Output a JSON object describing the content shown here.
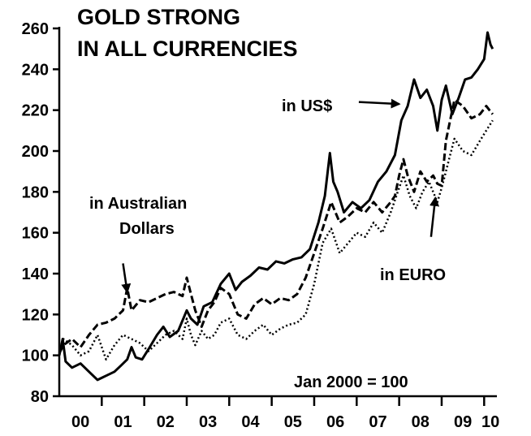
{
  "chart_data": {
    "type": "line",
    "title_lines": [
      "GOLD STRONG",
      "IN ALL CURRENCIES"
    ],
    "note": "Jan 2000 = 100",
    "xlabel": "",
    "ylabel": "",
    "xlim": [
      2000,
      2010.3
    ],
    "ylim": [
      80,
      260
    ],
    "y_ticks": [
      80,
      100,
      120,
      140,
      160,
      180,
      200,
      220,
      240,
      260
    ],
    "x_ticks": [
      {
        "label": "00",
        "value": 2000.5
      },
      {
        "label": "01",
        "value": 2001.5
      },
      {
        "label": "02",
        "value": 2002.5
      },
      {
        "label": "03",
        "value": 2003.5
      },
      {
        "label": "04",
        "value": 2004.5
      },
      {
        "label": "05",
        "value": 2005.5
      },
      {
        "label": "06",
        "value": 2006.5
      },
      {
        "label": "07",
        "value": 2007.5
      },
      {
        "label": "08",
        "value": 2008.5
      },
      {
        "label": "09",
        "value": 2009.5
      },
      {
        "label": "10",
        "value": 2010.15
      }
    ],
    "grid": false,
    "legend": "none (series labelled by annotations)",
    "series": [
      {
        "name": "in US$",
        "style": "solid",
        "x": [
          2000.0,
          2000.08,
          2000.15,
          2000.3,
          2000.5,
          2000.7,
          2000.9,
          2001.1,
          2001.3,
          2001.45,
          2001.6,
          2001.7,
          2001.8,
          2001.95,
          2002.1,
          2002.3,
          2002.45,
          2002.6,
          2002.8,
          2003.0,
          2003.1,
          2003.25,
          2003.4,
          2003.6,
          2003.8,
          2004.0,
          2004.15,
          2004.3,
          2004.5,
          2004.7,
          2004.9,
          2005.1,
          2005.3,
          2005.5,
          2005.7,
          2005.9,
          2006.1,
          2006.25,
          2006.37,
          2006.45,
          2006.55,
          2006.7,
          2006.9,
          2007.1,
          2007.3,
          2007.5,
          2007.7,
          2007.9,
          2008.05,
          2008.2,
          2008.35,
          2008.5,
          2008.65,
          2008.8,
          2008.9,
          2009.0,
          2009.1,
          2009.25,
          2009.4,
          2009.55,
          2009.7,
          2009.85,
          2010.0,
          2010.08,
          2010.15,
          2010.2
        ],
        "values": [
          100,
          108,
          97,
          94,
          96,
          92,
          88,
          90,
          92,
          95,
          98,
          104,
          99,
          98,
          103,
          110,
          114,
          109,
          112,
          122,
          118,
          115,
          124,
          126,
          135,
          140,
          132,
          136,
          139,
          143,
          142,
          146,
          145,
          147,
          148,
          152,
          165,
          178,
          199,
          185,
          180,
          170,
          175,
          172,
          176,
          185,
          190,
          198,
          215,
          222,
          235,
          226,
          230,
          222,
          210,
          225,
          232,
          218,
          226,
          235,
          236,
          240,
          245,
          258,
          252,
          250
        ]
      },
      {
        "name": "in Australian Dollars",
        "style": "dashed",
        "x": [
          2000.0,
          2000.1,
          2000.3,
          2000.5,
          2000.7,
          2000.9,
          2001.1,
          2001.3,
          2001.5,
          2001.6,
          2001.7,
          2001.9,
          2002.1,
          2002.3,
          2002.5,
          2002.7,
          2002.9,
          2003.0,
          2003.1,
          2003.2,
          2003.35,
          2003.5,
          2003.65,
          2003.8,
          2004.0,
          2004.2,
          2004.4,
          2004.6,
          2004.8,
          2005.0,
          2005.2,
          2005.4,
          2005.6,
          2005.8,
          2006.0,
          2006.2,
          2006.4,
          2006.6,
          2006.8,
          2007.0,
          2007.2,
          2007.4,
          2007.6,
          2007.8,
          2007.9,
          2008.0,
          2008.1,
          2008.2,
          2008.35,
          2008.5,
          2008.65,
          2008.8,
          2008.9,
          2009.0,
          2009.1,
          2009.2,
          2009.3,
          2009.5,
          2009.7,
          2009.9,
          2010.05,
          2010.2
        ],
        "values": [
          101,
          105,
          108,
          104,
          110,
          115,
          116,
          118,
          122,
          133,
          122,
          127,
          126,
          128,
          130,
          131,
          129,
          138,
          130,
          122,
          114,
          122,
          126,
          133,
          130,
          120,
          118,
          125,
          128,
          125,
          128,
          127,
          130,
          138,
          150,
          162,
          175,
          165,
          168,
          172,
          170,
          175,
          170,
          175,
          178,
          188,
          196,
          188,
          180,
          190,
          185,
          188,
          184,
          183,
          205,
          215,
          225,
          222,
          216,
          218,
          222,
          218
        ]
      },
      {
        "name": "in EURO",
        "style": "dotted",
        "x": [
          2000.0,
          2000.1,
          2000.3,
          2000.5,
          2000.7,
          2000.9,
          2001.1,
          2001.3,
          2001.5,
          2001.7,
          2001.9,
          2002.1,
          2002.3,
          2002.5,
          2002.7,
          2002.9,
          2003.0,
          2003.1,
          2003.2,
          2003.35,
          2003.5,
          2003.65,
          2003.8,
          2004.0,
          2004.2,
          2004.4,
          2004.6,
          2004.8,
          2005.0,
          2005.2,
          2005.4,
          2005.6,
          2005.8,
          2006.0,
          2006.2,
          2006.4,
          2006.6,
          2006.8,
          2007.0,
          2007.2,
          2007.4,
          2007.6,
          2007.8,
          2008.0,
          2008.1,
          2008.25,
          2008.4,
          2008.55,
          2008.7,
          2008.9,
          2009.0,
          2009.1,
          2009.2,
          2009.3,
          2009.5,
          2009.7,
          2009.9,
          2010.05,
          2010.2
        ],
        "values": [
          102,
          108,
          105,
          100,
          102,
          110,
          98,
          105,
          110,
          108,
          106,
          102,
          106,
          110,
          112,
          108,
          118,
          110,
          105,
          112,
          108,
          110,
          116,
          118,
          110,
          108,
          112,
          115,
          110,
          113,
          115,
          116,
          120,
          135,
          155,
          162,
          150,
          155,
          160,
          158,
          165,
          160,
          170,
          182,
          188,
          178,
          172,
          180,
          185,
          175,
          182,
          190,
          198,
          206,
          200,
          198,
          205,
          210,
          215
        ]
      }
    ],
    "annotations": [
      {
        "text": "in US$",
        "arrow_from": [
          2007.05,
          224
        ],
        "arrow_to": [
          2008.0,
          223
        ]
      },
      {
        "text": "in Australian Dollars",
        "text_lines": [
          "in Australian",
          "Dollars"
        ],
        "arrow_from": [
          2001.5,
          145
        ],
        "arrow_to": [
          2001.6,
          131
        ]
      },
      {
        "text": "in EURO",
        "arrow_from": [
          2008.75,
          158
        ],
        "arrow_to": [
          2008.85,
          177
        ]
      }
    ],
    "colors": {
      "background": "#ffffff",
      "ink": "#000000"
    }
  }
}
